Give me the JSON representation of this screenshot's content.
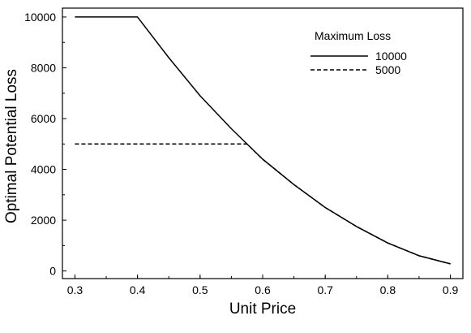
{
  "chart_data": {
    "type": "line",
    "xlabel": "Unit Price",
    "ylabel": "Optimal Potential Loss",
    "xlim": [
      0.28,
      0.92
    ],
    "ylim": [
      -300,
      10350
    ],
    "xticks": [
      0.3,
      0.4,
      0.5,
      0.6,
      0.7,
      0.8,
      0.9
    ],
    "xtick_labels": [
      "0.3",
      "0.4",
      "0.5",
      "0.6",
      "0.7",
      "0.8",
      "0.9"
    ],
    "yticks": [
      0,
      2000,
      4000,
      6000,
      8000,
      10000
    ],
    "ytick_labels": [
      "0",
      "2000",
      "4000",
      "6000",
      "8000",
      "10000"
    ],
    "grid": false,
    "legend_title": "Maximum Loss",
    "legend_position": "top-right",
    "series": [
      {
        "name": "10000",
        "style": "solid",
        "color": "#000000",
        "x": [
          0.3,
          0.4,
          0.45,
          0.5,
          0.55,
          0.6,
          0.65,
          0.7,
          0.75,
          0.8,
          0.85,
          0.9
        ],
        "y": [
          10000,
          10000,
          8400,
          6900,
          5600,
          4400,
          3400,
          2500,
          1750,
          1100,
          600,
          280
        ]
      },
      {
        "name": "5000",
        "style": "dashed",
        "color": "#000000",
        "x": [
          0.3,
          0.575,
          0.6,
          0.65,
          0.7,
          0.75,
          0.8,
          0.85,
          0.9
        ],
        "y": [
          5000,
          5000,
          4400,
          3400,
          2500,
          1750,
          1100,
          600,
          280
        ]
      }
    ]
  }
}
